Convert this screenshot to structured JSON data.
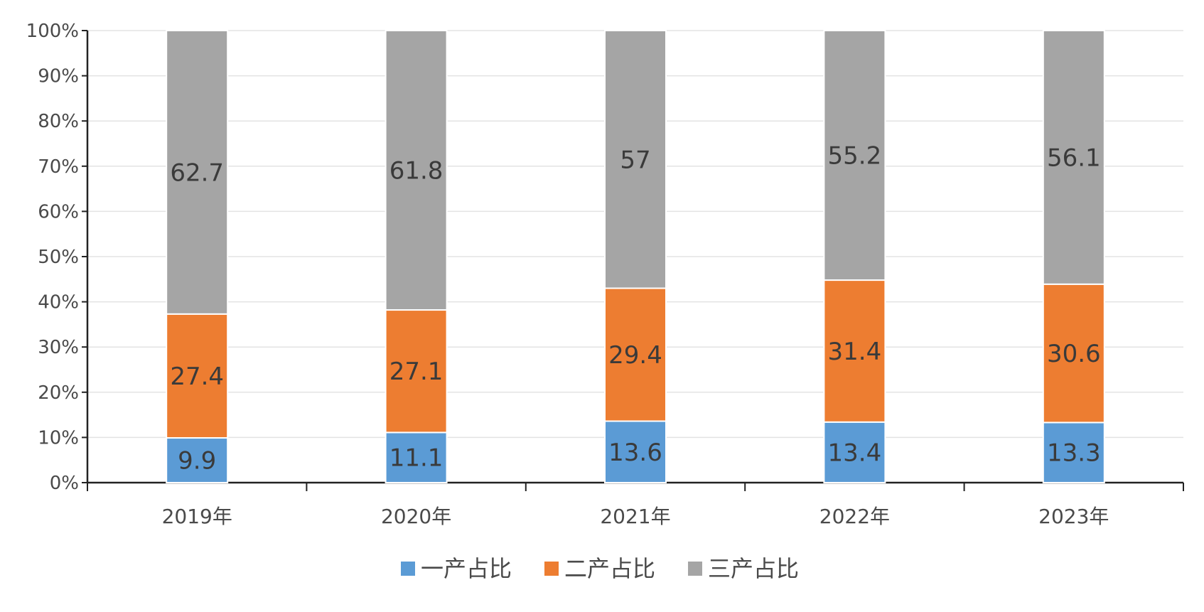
{
  "chart_data": {
    "type": "bar",
    "stacked": true,
    "categories": [
      "2019年",
      "2020年",
      "2021年",
      "2022年",
      "2023年"
    ],
    "series": [
      {
        "name": "一产占比",
        "values": [
          9.9,
          11.1,
          13.6,
          13.4,
          13.3
        ],
        "color": "#5b9bd5"
      },
      {
        "name": "二产占比",
        "values": [
          27.4,
          27.1,
          29.4,
          31.4,
          30.6
        ],
        "color": "#ed7d31"
      },
      {
        "name": "三产占比",
        "values": [
          62.7,
          61.8,
          57,
          55.2,
          56.1
        ],
        "color": "#a5a5a5"
      }
    ],
    "y_ticks": [
      "0%",
      "10%",
      "20%",
      "30%",
      "40%",
      "50%",
      "60%",
      "70%",
      "80%",
      "90%",
      "100%"
    ],
    "ylim": [
      0,
      100
    ],
    "grid": true,
    "legend_position": "bottom"
  }
}
